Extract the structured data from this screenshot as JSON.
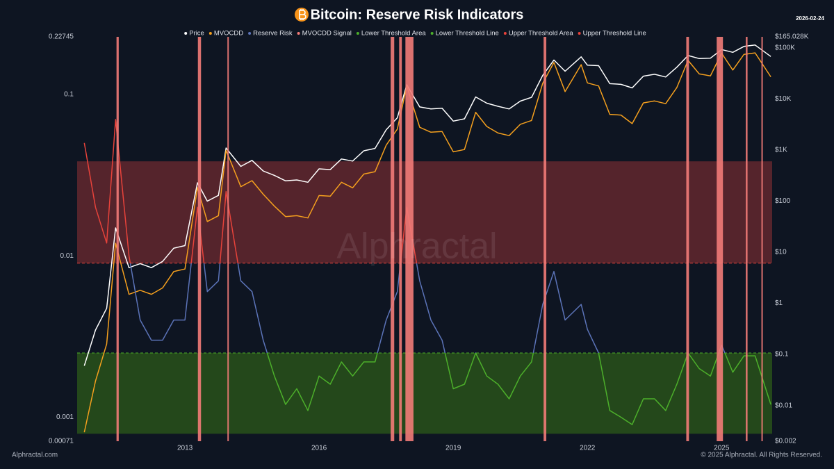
{
  "chart_data": {
    "type": "line",
    "title": "Bitcoin: Reserve Risk Indicators",
    "date": "2026-02-24",
    "watermark": "Alphractal",
    "footer_left": "Alphractal.com",
    "footer_right": "© 2025 Alphractal. All Rights Reserved.",
    "x": [
      2010.75,
      2011.0,
      2011.25,
      2011.45,
      2011.75,
      2012.0,
      2012.25,
      2012.5,
      2012.75,
      2013.0,
      2013.28,
      2013.5,
      2013.75,
      2013.92,
      2014.25,
      2014.5,
      2014.75,
      2015.0,
      2015.25,
      2015.5,
      2015.75,
      2016.0,
      2016.25,
      2016.5,
      2016.75,
      2017.0,
      2017.25,
      2017.5,
      2017.75,
      2017.96,
      2018.25,
      2018.5,
      2018.75,
      2019.0,
      2019.25,
      2019.5,
      2019.75,
      2020.0,
      2020.25,
      2020.5,
      2020.75,
      2021.0,
      2021.25,
      2021.5,
      2021.86,
      2022.0,
      2022.25,
      2022.5,
      2022.75,
      2023.0,
      2023.25,
      2023.5,
      2023.75,
      2024.0,
      2024.25,
      2024.5,
      2024.75,
      2025.0,
      2025.25,
      2025.5,
      2025.75,
      2026.1
    ],
    "xlim": [
      2010.59,
      2026.13
    ],
    "xticks": [
      2013,
      2016,
      2019,
      2022,
      2025
    ],
    "ylim": [
      0.00071,
      0.22745
    ],
    "yticks": [
      0.00071,
      0.001,
      0.01,
      0.1,
      0.22745
    ],
    "y2lim": [
      0.002,
      165028
    ],
    "y2ticks": [
      {
        "value": 0.002,
        "label": "$0.002"
      },
      {
        "value": 0.01,
        "label": "$0.01"
      },
      {
        "value": 0.1,
        "label": "$0.1"
      },
      {
        "value": 1,
        "label": "$1"
      },
      {
        "value": 10,
        "label": "$10"
      },
      {
        "value": 100,
        "label": "$100"
      },
      {
        "value": 1000,
        "label": "$1K"
      },
      {
        "value": 10000,
        "label": "$10K"
      },
      {
        "value": 100000,
        "label": "$100K"
      },
      {
        "value": 165028,
        "label": "$165.028K"
      }
    ],
    "log_scale": true,
    "grid": false,
    "series": [
      {
        "name": "Price",
        "color": "#ffffff",
        "axis": "y2",
        "values": [
          0.06,
          0.3,
          0.8,
          30,
          5,
          6,
          5,
          6.6,
          12,
          13.5,
          230,
          100,
          130,
          1100,
          480,
          630,
          390,
          320,
          250,
          260,
          235,
          430,
          415,
          670,
          610,
          970,
          1080,
          2500,
          4300,
          19000,
          7000,
          6400,
          6600,
          3700,
          4100,
          11000,
          8300,
          7200,
          6400,
          9100,
          10800,
          29000,
          58000,
          35000,
          67000,
          46000,
          45000,
          20000,
          19400,
          16500,
          28000,
          30500,
          27000,
          42000,
          71000,
          62000,
          63000,
          93000,
          82000,
          107000,
          114000,
          68000
        ]
      },
      {
        "name": "MVOCDD",
        "color": "#f5a01e",
        "axis": "y2",
        "values": [
          0.003,
          0.03,
          0.16,
          15,
          1.5,
          1.8,
          1.5,
          2,
          4.2,
          4.7,
          184,
          40,
          52,
          990,
          192,
          252,
          137,
          80,
          50,
          52,
          47,
          129,
          125,
          235,
          183,
          340,
          378,
          1250,
          2580,
          18000,
          2800,
          2240,
          2310,
          925,
          1025,
          5500,
          2900,
          2160,
          1920,
          3200,
          3800,
          20300,
          52000,
          14000,
          47000,
          20700,
          18000,
          5000,
          4850,
          3300,
          8400,
          9150,
          8100,
          16800,
          57000,
          31000,
          28350,
          79000,
          36900,
          75000,
          80000,
          27200
        ]
      },
      {
        "name": "Reserve Risk",
        "color": "#5b73b8",
        "values": [
          0.05,
          0.02,
          0.012,
          0.07,
          0.01,
          0.004,
          0.003,
          0.003,
          0.004,
          0.004,
          0.02,
          0.006,
          0.007,
          0.025,
          0.007,
          0.006,
          0.003,
          0.0018,
          0.0012,
          0.0015,
          0.0011,
          0.0018,
          0.0016,
          0.0022,
          0.0018,
          0.0022,
          0.0022,
          0.004,
          0.006,
          0.02,
          0.007,
          0.004,
          0.003,
          0.0015,
          0.0016,
          0.0025,
          0.0018,
          0.0016,
          0.0013,
          0.0018,
          0.0022,
          0.005,
          0.008,
          0.004,
          0.005,
          0.0035,
          0.0025,
          0.0011,
          0.001,
          0.0009,
          0.0013,
          0.0013,
          0.0011,
          0.0016,
          0.0025,
          0.002,
          0.0018,
          0.0028,
          0.0019,
          0.0024,
          0.0024,
          0.0012
        ]
      },
      {
        "name": "MVOCDD Signal",
        "color": "#f27b78",
        "periods": [
          [
            2011.47,
            2011.52
          ],
          [
            2013.29,
            2013.36
          ],
          [
            2013.95,
            2013.98
          ],
          [
            2017.6,
            2017.68
          ],
          [
            2017.79,
            2017.85
          ],
          [
            2017.93,
            2018.11
          ],
          [
            2021.02,
            2021.08
          ],
          [
            2024.21,
            2024.27
          ],
          [
            2024.89,
            2025.03
          ],
          [
            2025.54,
            2025.58
          ],
          [
            2025.89,
            2025.92
          ]
        ]
      },
      {
        "name": "Lower Threshold Area",
        "color": "#2c5a1a",
        "range": [
          0.00079,
          0.0025
        ]
      },
      {
        "name": "Lower Threshold Line",
        "color": "#4caf2a",
        "value": 0.0025
      },
      {
        "name": "Upper Threshold Area",
        "color": "#6e2a30",
        "range": [
          0.009,
          0.0385
        ]
      },
      {
        "name": "Upper Threshold Line",
        "color": "#e8423a",
        "value": 0.009
      }
    ]
  }
}
